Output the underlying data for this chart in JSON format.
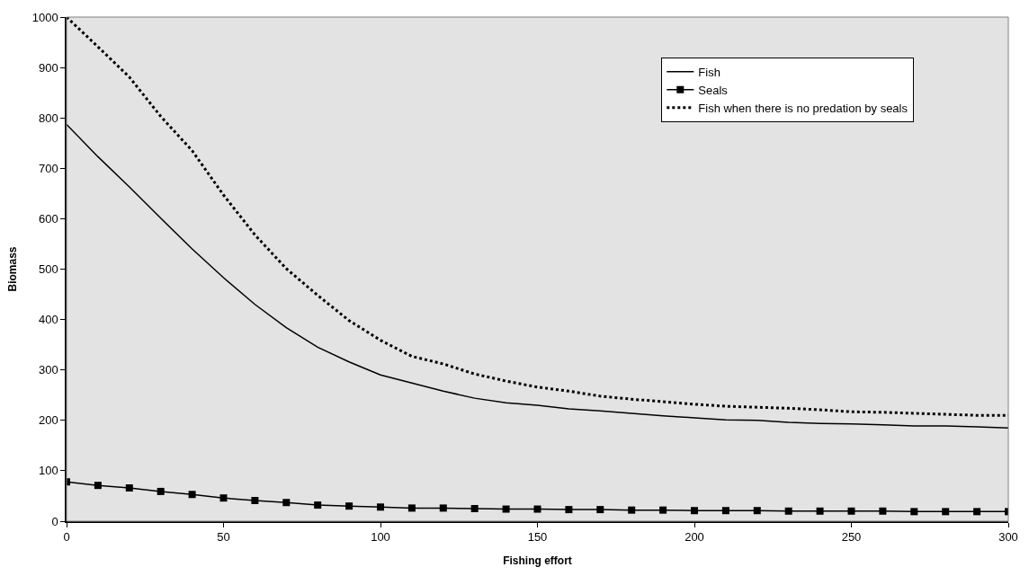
{
  "chart_data": {
    "type": "line",
    "xlabel": "Fishing effort",
    "ylabel": "Biomass",
    "x": [
      0,
      10,
      20,
      30,
      40,
      50,
      60,
      70,
      80,
      90,
      100,
      110,
      120,
      130,
      140,
      150,
      160,
      170,
      180,
      190,
      200,
      210,
      220,
      230,
      240,
      250,
      260,
      270,
      280,
      290,
      300
    ],
    "series": [
      {
        "name": "Fish",
        "color": "#000000",
        "marker": "none",
        "line_style": "solid",
        "values": [
          787,
          723,
          663,
          601,
          540,
          483,
          430,
          384,
          345,
          316,
          290,
          274,
          258,
          244,
          235,
          230,
          223,
          219,
          214,
          209,
          205,
          201,
          200,
          196,
          194,
          193,
          191,
          189,
          189,
          187,
          185
        ]
      },
      {
        "name": "Seals",
        "color": "#000000",
        "marker": "square",
        "line_style": "solid",
        "values": [
          78,
          71,
          66,
          59,
          53,
          46,
          41,
          37,
          32,
          30,
          28,
          26,
          26,
          25,
          24,
          24,
          23,
          23,
          22,
          22,
          21,
          21,
          21,
          20,
          20,
          20,
          20,
          19,
          19,
          19,
          19
        ]
      },
      {
        "name": "Fish when there is no predation by seals",
        "color": "#000000",
        "marker": "none",
        "line_style": "dotted",
        "values": [
          1000,
          941,
          881,
          803,
          735,
          647,
          568,
          501,
          448,
          398,
          359,
          327,
          312,
          292,
          278,
          266,
          258,
          248,
          242,
          237,
          232,
          228,
          226,
          224,
          221,
          217,
          216,
          214,
          212,
          210,
          210
        ]
      }
    ],
    "xlim": [
      0,
      300
    ],
    "xticks": [
      0,
      50,
      100,
      150,
      200,
      250,
      300
    ],
    "ylim": [
      0,
      1000
    ],
    "yticks": [
      0,
      100,
      200,
      300,
      400,
      500,
      600,
      700,
      800,
      900,
      1000
    ],
    "grid": false,
    "legend": "top right"
  }
}
